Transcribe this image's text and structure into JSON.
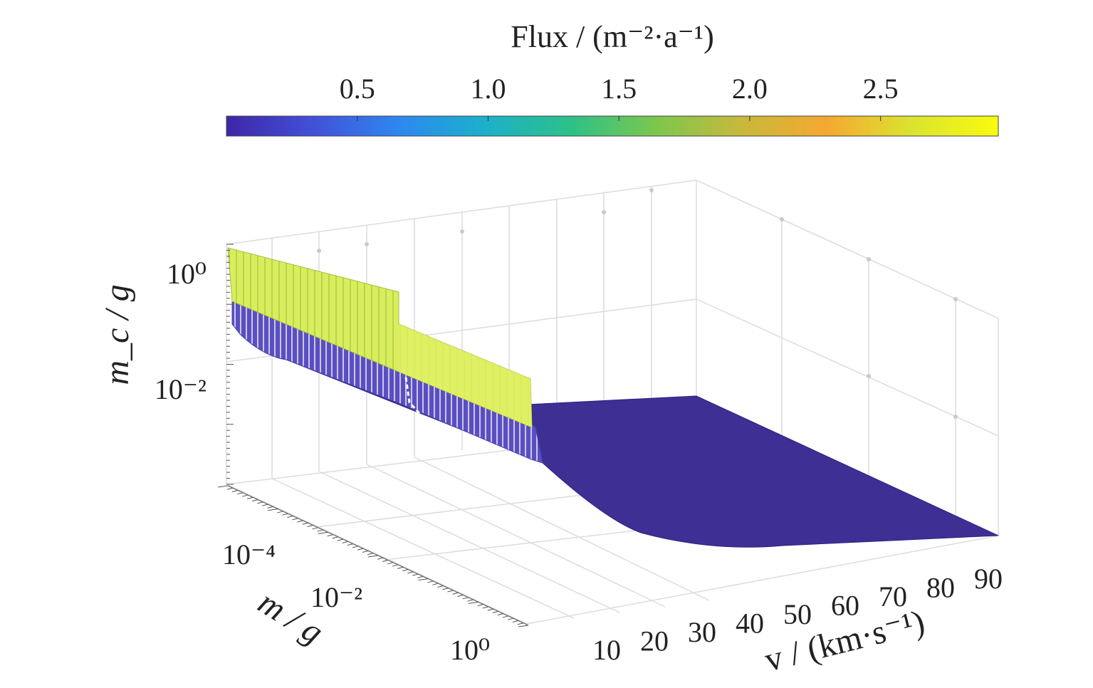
{
  "chart_data": {
    "type": "surface",
    "colorbar": {
      "title": "Flux / (m⁻²·a⁻¹)",
      "ticks": [
        "0.5",
        "1.0",
        "1.5",
        "2.0",
        "2.5"
      ],
      "range": [
        0,
        2.95
      ],
      "position": "top",
      "colormap": [
        "#3e26a8",
        "#4250d8",
        "#2e87f0",
        "#1cb0cc",
        "#2cc08a",
        "#7cc74e",
        "#c7b93c",
        "#f5a830",
        "#dbe42f",
        "#f9fb0e"
      ]
    },
    "axes": {
      "x": {
        "label": "v / (km·s⁻¹)",
        "ticks": [
          "10",
          "20",
          "30",
          "40",
          "50",
          "60",
          "70",
          "80",
          "90"
        ],
        "range": [
          10,
          90
        ]
      },
      "y": {
        "label": "m / g",
        "scale": "log",
        "ticks": [
          "10⁻⁴",
          "10⁻²",
          "10⁰"
        ],
        "range": [
          1e-06,
          1
        ]
      },
      "z": {
        "label": "m_c / g",
        "scale": "log",
        "ticks": [
          "10⁰",
          "10⁻²"
        ],
        "range": [
          1e-05,
          10
        ]
      }
    },
    "grid": true,
    "surface": {
      "description_values": {
        "v_kms": [
          10,
          20,
          30,
          40,
          50,
          60,
          70,
          80,
          90
        ],
        "m_c_at_m_1e-6_g": [
          0.02,
          0.012,
          0.008,
          0.006,
          0.005,
          0.004,
          0.004,
          0.003,
          0.003
        ],
        "m_c_at_m_1_g": [
          3,
          1.5,
          0.6,
          0.2,
          0.1,
          0.06,
          0.04,
          0.03,
          0.02
        ]
      },
      "flux_low_band": 0.05,
      "flux_high_band": 2.8,
      "high_flux_v_limit": 25
    }
  },
  "colors": {
    "surface_base": "#3d2f94",
    "surface_edge": "#2a1f7a",
    "high_flux": "#d6ec5a",
    "mid_flux": "#6a63c8"
  }
}
